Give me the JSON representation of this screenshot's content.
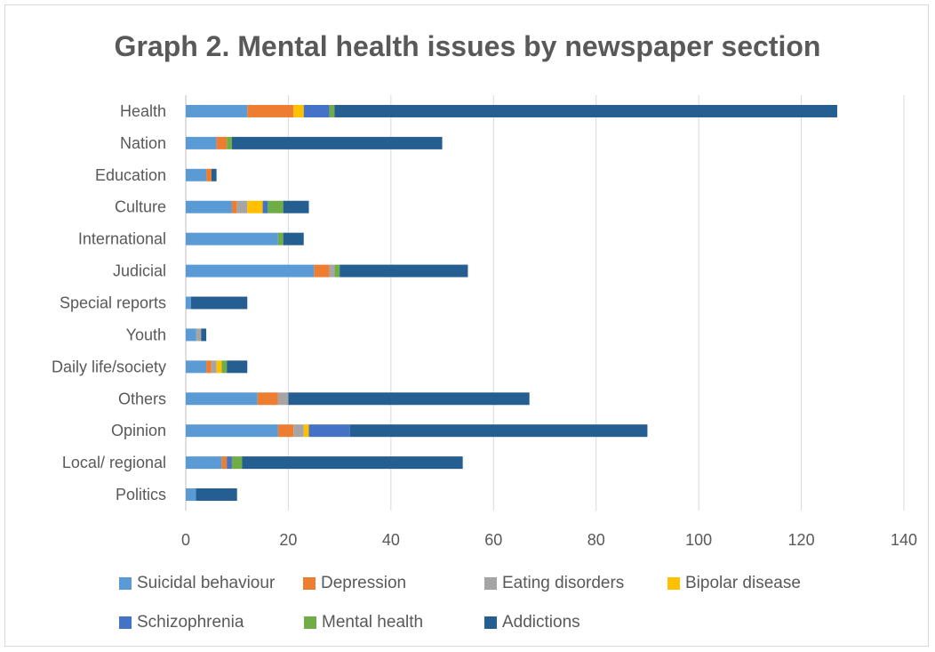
{
  "chart_data": {
    "type": "bar",
    "orientation": "horizontal",
    "stacked": true,
    "title": "Graph 2. Mental health issues by newspaper section",
    "categories": [
      "Health",
      "Nation",
      "Education",
      "Culture",
      "International",
      "Judicial",
      "Special reports",
      "Youth",
      "Daily life/society",
      "Others",
      "Opinion",
      "Local/ regional",
      "Politics"
    ],
    "xlim": [
      0,
      140
    ],
    "xticks": [
      0,
      20,
      40,
      60,
      80,
      100,
      120,
      140
    ],
    "grid": true,
    "legend_position": "bottom",
    "series": [
      {
        "name": "Suicidal behaviour",
        "color": "#5b9bd5",
        "values": [
          12,
          6,
          4,
          9,
          18,
          25,
          1,
          2,
          4,
          14,
          18,
          7,
          2
        ]
      },
      {
        "name": "Depression",
        "color": "#ed7d31",
        "values": [
          9,
          2,
          1,
          1,
          0,
          3,
          0,
          0,
          1,
          4,
          3,
          1,
          0
        ]
      },
      {
        "name": "Eating disorders",
        "color": "#a5a5a5",
        "values": [
          0,
          0,
          0,
          2,
          0,
          1,
          0,
          1,
          1,
          2,
          2,
          0,
          0
        ]
      },
      {
        "name": "Bipolar disease",
        "color": "#ffc000",
        "values": [
          2,
          0,
          0,
          3,
          0,
          0,
          0,
          0,
          1,
          0,
          1,
          0,
          0
        ]
      },
      {
        "name": "Schizophrenia",
        "color": "#4472c4",
        "values": [
          5,
          0,
          0,
          1,
          0,
          0,
          0,
          0,
          0,
          0,
          8,
          1,
          0
        ]
      },
      {
        "name": "Mental health",
        "color": "#70ad47",
        "values": [
          1,
          1,
          0,
          3,
          1,
          1,
          0,
          0,
          1,
          0,
          0,
          2,
          0
        ]
      },
      {
        "name": "Addictions",
        "color": "#255e91",
        "values": [
          98,
          41,
          1,
          5,
          4,
          25,
          11,
          1,
          4,
          47,
          58,
          43,
          8
        ]
      }
    ]
  }
}
